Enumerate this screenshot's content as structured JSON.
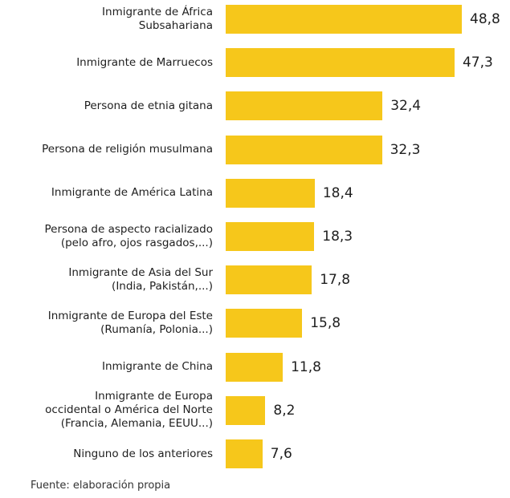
{
  "chart_data": {
    "type": "bar",
    "orientation": "horizontal",
    "categories": [
      "Inmigrante de África\nSubsahariana",
      "Inmigrante de Marruecos",
      "Persona de etnia gitana",
      "Persona de religión musulmana",
      "Inmigrante de América Latina",
      "Persona de aspecto racializado\n(pelo afro, ojos rasgados,...)",
      "Inmigrante de Asia del Sur\n(India, Pakistán,...)",
      "Inmigrante de Europa del Este\n(Rumanía, Polonia...)",
      "Inmigrante de China",
      "Inmigrante de Europa\noccidental o América del Norte\n(Francia, Alemania, EEUU...)",
      "Ninguno de los anteriores"
    ],
    "values": [
      48.8,
      47.3,
      32.4,
      32.3,
      18.4,
      18.3,
      17.8,
      15.8,
      11.8,
      8.2,
      7.6
    ],
    "value_labels": [
      "48,8",
      "47,3",
      "32,4",
      "32,3",
      "18,4",
      "18,3",
      "17,8",
      "15,8",
      "11,8",
      "8,2",
      "7,6"
    ],
    "bar_color": "#f6c71b",
    "grid": false,
    "legend": "none"
  },
  "source": "Fuente: elaboración propia"
}
